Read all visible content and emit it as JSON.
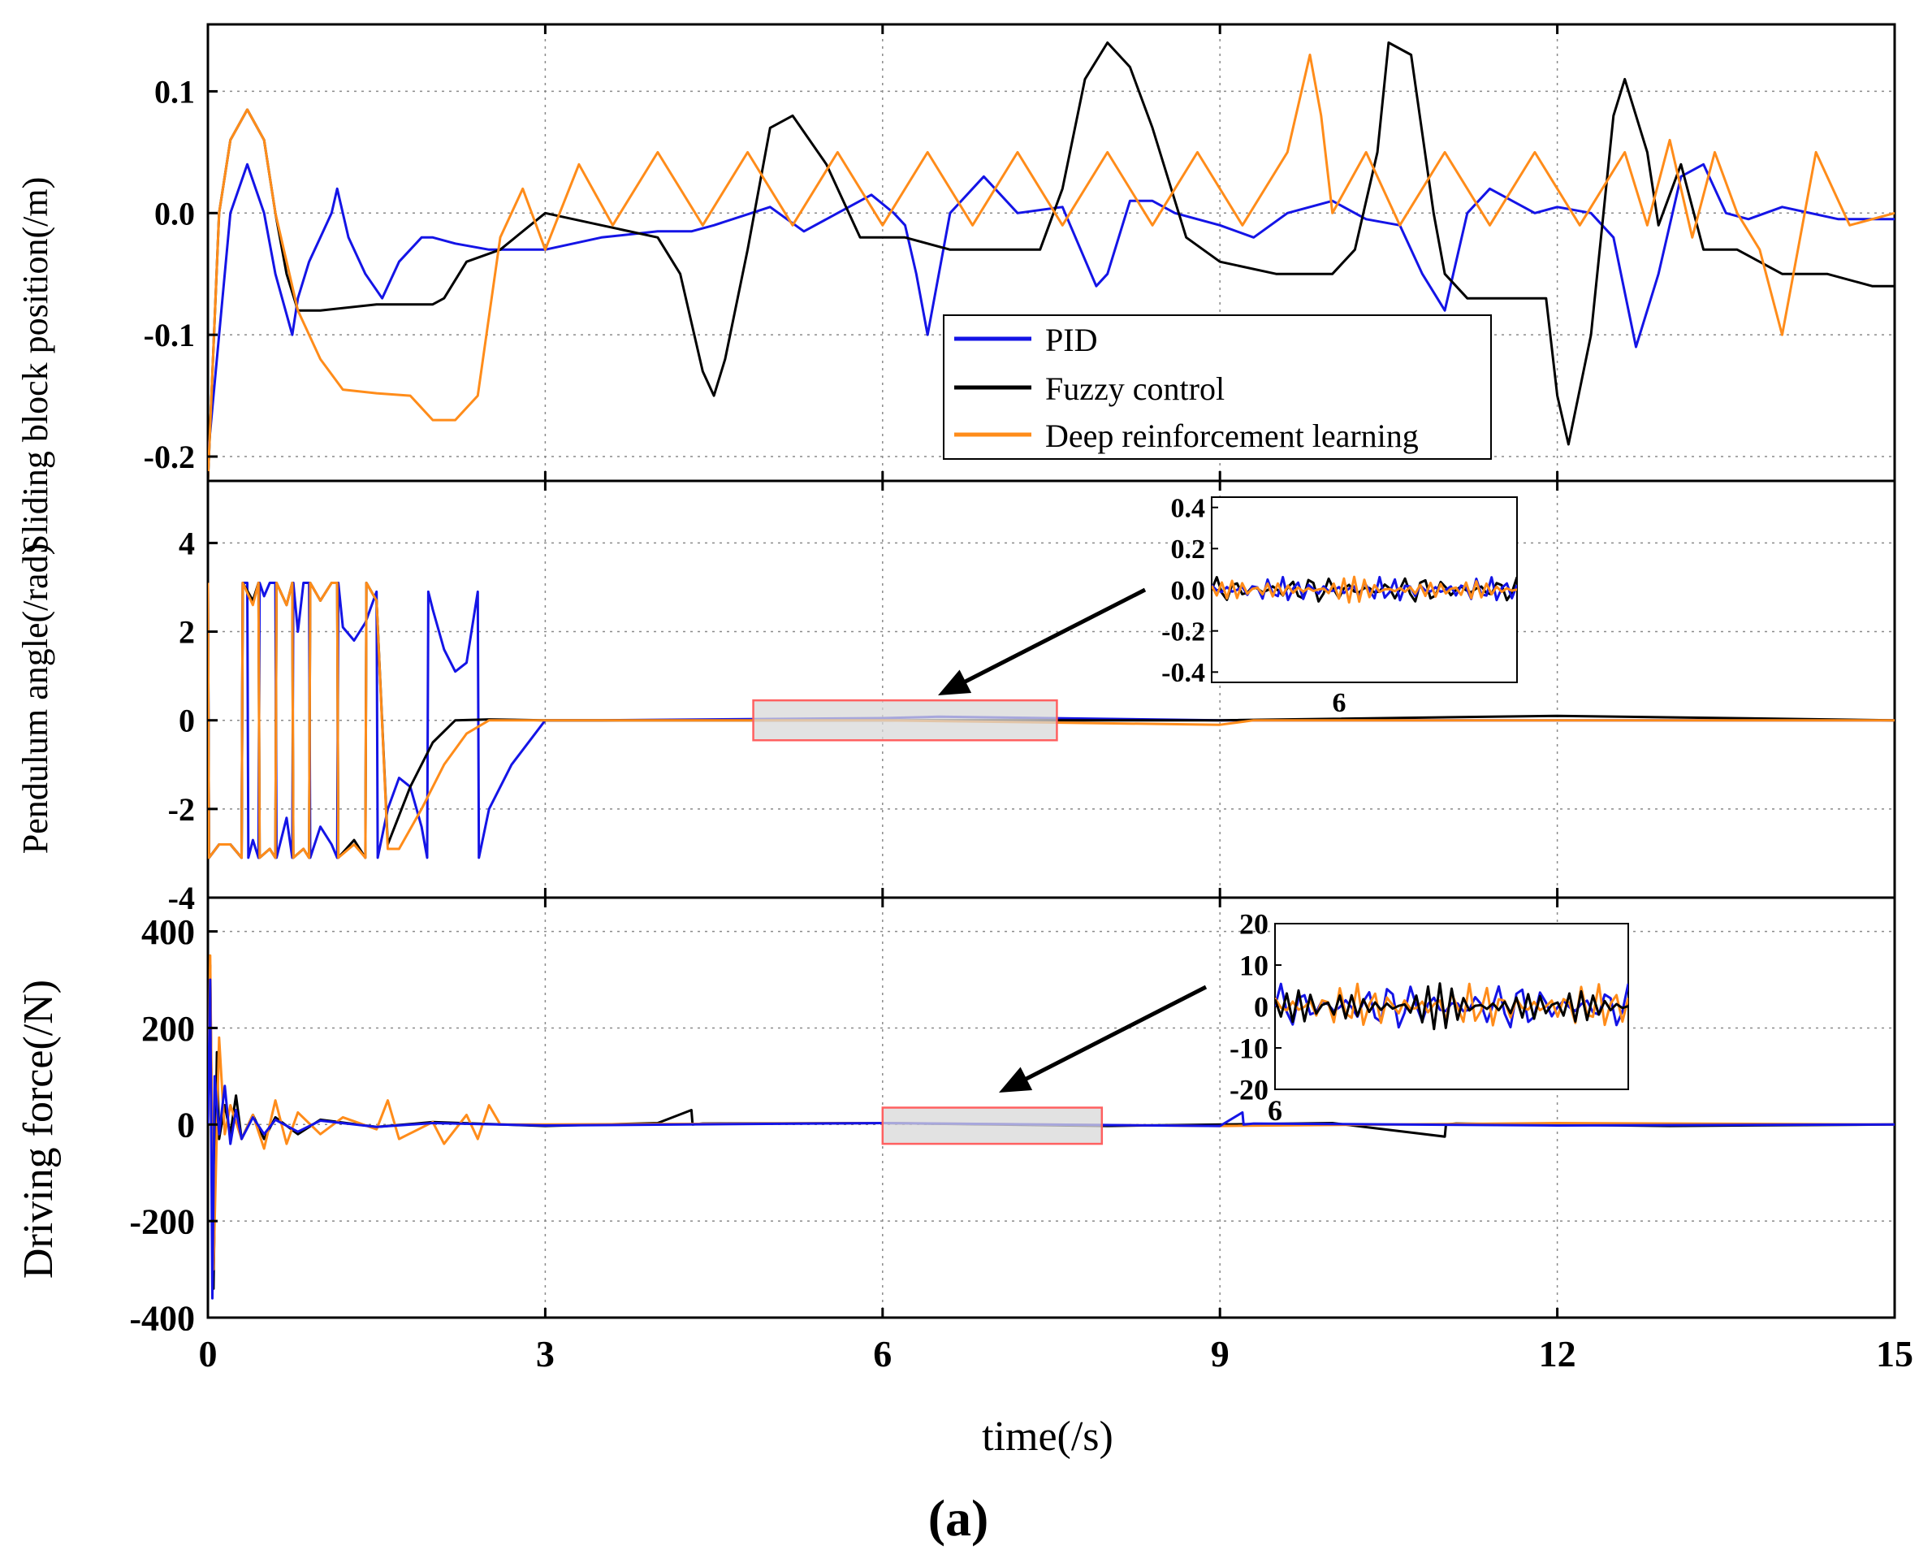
{
  "figure_label": "(a)",
  "colors": {
    "PID": "#1414e6",
    "Fuzzy control": "#000000",
    "Deep reinforcement learning": "#ff8c1a",
    "zoom_box_stroke": "#ff6060",
    "zoom_box_fill": "#d8d8d8"
  },
  "chart_data": [
    {
      "type": "line",
      "id": "position",
      "ylabel": "Sliding block position(/m)",
      "xlabel": "time(/s)",
      "xlim": [
        0,
        15
      ],
      "ylim": [
        -0.22,
        0.155
      ],
      "yticks": [
        0.1,
        0.0,
        -0.1,
        -0.2
      ],
      "ytick_labels": [
        "0.1",
        "0.0",
        "-0.1",
        "-0.2"
      ],
      "xticks": [
        0,
        3,
        6,
        9,
        12,
        15
      ],
      "xtick_labels": [
        "0",
        "3",
        "6",
        "9",
        "12",
        "15"
      ],
      "grid": true,
      "legend": {
        "placement": "bottom-center",
        "entries": [
          "PID",
          "Fuzzy control",
          "Deep reinforcement learning"
        ]
      },
      "series": [
        {
          "name": "PID",
          "x": [
            0,
            0.1,
            0.2,
            0.35,
            0.5,
            0.6,
            0.75,
            0.8,
            0.9,
            1.0,
            1.1,
            1.15,
            1.25,
            1.4,
            1.55,
            1.7,
            1.8,
            1.9,
            2.0,
            2.2,
            2.5,
            3.0,
            3.5,
            4.0,
            4.3,
            4.5,
            5.0,
            5.3,
            5.6,
            5.9,
            6.1,
            6.2,
            6.3,
            6.4,
            6.6,
            6.9,
            7.2,
            7.6,
            7.9,
            8.0,
            8.2,
            8.4,
            8.6,
            8.8,
            9.0,
            9.3,
            9.6,
            10.0,
            10.3,
            10.6,
            10.8,
            11.0,
            11.2,
            11.4,
            11.6,
            11.8,
            12.0,
            12.3,
            12.5,
            12.7,
            12.9,
            13.1,
            13.3,
            13.5,
            13.7,
            14.0,
            14.5,
            15.0
          ],
          "y": [
            -0.2,
            -0.1,
            0.0,
            0.04,
            0.0,
            -0.05,
            -0.1,
            -0.07,
            -0.04,
            -0.02,
            0.0,
            0.02,
            -0.02,
            -0.05,
            -0.07,
            -0.04,
            -0.03,
            -0.02,
            -0.02,
            -0.025,
            -0.03,
            -0.03,
            -0.02,
            -0.015,
            -0.015,
            -0.01,
            0.005,
            -0.015,
            0.0,
            0.015,
            0.0,
            -0.01,
            -0.05,
            -0.1,
            0.0,
            0.03,
            0.0,
            0.005,
            -0.06,
            -0.05,
            0.01,
            0.01,
            0.0,
            -0.005,
            -0.01,
            -0.02,
            0.0,
            0.01,
            -0.005,
            -0.01,
            -0.05,
            -0.08,
            0.0,
            0.02,
            0.01,
            0.0,
            0.005,
            0.0,
            -0.02,
            -0.11,
            -0.05,
            0.03,
            0.04,
            0.0,
            -0.005,
            0.005,
            -0.005,
            -0.005
          ]
        },
        {
          "name": "Fuzzy control",
          "x": [
            0,
            0.1,
            0.2,
            0.35,
            0.5,
            0.6,
            0.7,
            0.8,
            1.0,
            1.5,
            2.0,
            2.1,
            2.3,
            2.6,
            3.0,
            3.5,
            4.0,
            4.2,
            4.4,
            4.5,
            4.6,
            4.8,
            5.0,
            5.2,
            5.5,
            5.8,
            6.2,
            6.6,
            7.0,
            7.4,
            7.6,
            7.8,
            8.0,
            8.2,
            8.4,
            8.7,
            9.0,
            9.5,
            10.0,
            10.2,
            10.4,
            10.5,
            10.7,
            10.9,
            11.0,
            11.2,
            11.5,
            11.9,
            12.0,
            12.1,
            12.3,
            12.5,
            12.6,
            12.8,
            12.9,
            13.1,
            13.3,
            13.6,
            14.0,
            14.4,
            14.8,
            15.0
          ],
          "y": [
            -0.22,
            0.0,
            0.06,
            0.085,
            0.06,
            0.0,
            -0.05,
            -0.08,
            -0.08,
            -0.075,
            -0.075,
            -0.07,
            -0.04,
            -0.03,
            0.0,
            -0.01,
            -0.02,
            -0.05,
            -0.13,
            -0.15,
            -0.12,
            -0.03,
            0.07,
            0.08,
            0.04,
            -0.02,
            -0.02,
            -0.03,
            -0.03,
            -0.03,
            0.02,
            0.11,
            0.14,
            0.12,
            0.07,
            -0.02,
            -0.04,
            -0.05,
            -0.05,
            -0.03,
            0.05,
            0.14,
            0.13,
            0.0,
            -0.05,
            -0.07,
            -0.07,
            -0.07,
            -0.15,
            -0.19,
            -0.1,
            0.08,
            0.11,
            0.05,
            -0.01,
            0.04,
            -0.03,
            -0.03,
            -0.05,
            -0.05,
            -0.06,
            -0.06
          ]
        },
        {
          "name": "Deep reinforcement learning",
          "x": [
            0,
            0.1,
            0.2,
            0.35,
            0.5,
            0.6,
            0.8,
            1.0,
            1.2,
            1.5,
            1.8,
            2.0,
            2.2,
            2.4,
            2.6,
            2.8,
            3.0,
            3.3,
            3.6,
            4.0,
            4.4,
            4.8,
            5.2,
            5.6,
            6.0,
            6.4,
            6.8,
            7.2,
            7.6,
            8.0,
            8.4,
            8.8,
            9.2,
            9.6,
            9.8,
            9.9,
            10.0,
            10.3,
            10.6,
            11.0,
            11.4,
            11.8,
            12.2,
            12.6,
            12.8,
            13.0,
            13.2,
            13.4,
            13.6,
            13.8,
            14.0,
            14.3,
            14.6,
            15.0
          ],
          "y": [
            -0.22,
            0.0,
            0.06,
            0.085,
            0.06,
            0.0,
            -0.08,
            -0.12,
            -0.145,
            -0.148,
            -0.15,
            -0.17,
            -0.17,
            -0.15,
            -0.02,
            0.02,
            -0.03,
            0.04,
            -0.01,
            0.05,
            -0.01,
            0.05,
            -0.01,
            0.05,
            -0.01,
            0.05,
            -0.01,
            0.05,
            -0.01,
            0.05,
            -0.01,
            0.05,
            -0.01,
            0.05,
            0.13,
            0.08,
            0.0,
            0.05,
            -0.01,
            0.05,
            -0.01,
            0.05,
            -0.01,
            0.05,
            -0.01,
            0.06,
            -0.02,
            0.05,
            0.0,
            -0.03,
            -0.1,
            0.05,
            -0.01,
            0.0
          ]
        }
      ],
      "annotations": []
    },
    {
      "type": "line",
      "id": "angle",
      "ylabel": "Pendulum angle(/rad)",
      "xlim": [
        0,
        15
      ],
      "ylim": [
        -4,
        5.4
      ],
      "yticks": [
        4,
        2,
        0,
        -2,
        -4
      ],
      "ytick_labels": [
        "4",
        "2",
        "0",
        "-2",
        "-4"
      ],
      "xticks": [
        0,
        3,
        6,
        9,
        12,
        15
      ],
      "grid": true,
      "series": [
        {
          "name": "PID",
          "x": [
            0,
            0.01,
            0.1,
            0.2,
            0.3,
            0.31,
            0.35,
            0.36,
            0.4,
            0.45,
            0.46,
            0.5,
            0.55,
            0.6,
            0.61,
            0.7,
            0.75,
            0.76,
            0.8,
            0.85,
            0.9,
            0.91,
            1.0,
            1.1,
            1.15,
            1.16,
            1.2,
            1.3,
            1.4,
            1.5,
            1.51,
            1.6,
            1.7,
            1.8,
            1.9,
            1.95,
            1.96,
            2.0,
            2.1,
            2.2,
            2.3,
            2.4,
            2.41,
            2.5,
            2.7,
            3.0,
            3.5,
            6.0,
            6.5,
            9.0,
            12.0,
            15.0
          ],
          "y": [
            3.1,
            -3.1,
            -2.8,
            -2.8,
            -3.1,
            3.1,
            3.1,
            -3.1,
            -2.7,
            -3.1,
            3.1,
            2.8,
            3.1,
            3.1,
            -3.1,
            -2.2,
            -3.1,
            3.1,
            2.0,
            3.1,
            3.1,
            -3.1,
            -2.4,
            -2.8,
            -3.1,
            3.1,
            2.1,
            1.8,
            2.2,
            2.9,
            -3.1,
            -2.0,
            -1.3,
            -1.5,
            -2.4,
            -3.1,
            2.9,
            2.5,
            1.6,
            1.1,
            1.3,
            2.9,
            -3.1,
            -2.0,
            -1.0,
            0.0,
            0.0,
            0.05,
            0.08,
            0.0,
            0.0,
            0.0
          ]
        },
        {
          "name": "Fuzzy control",
          "x": [
            0,
            0.01,
            0.1,
            0.2,
            0.3,
            0.31,
            0.4,
            0.45,
            0.46,
            0.55,
            0.6,
            0.61,
            0.7,
            0.75,
            0.76,
            0.85,
            0.9,
            0.91,
            1.0,
            1.1,
            1.15,
            1.16,
            1.3,
            1.4,
            1.41,
            1.5,
            1.6,
            1.8,
            2.0,
            2.2,
            2.5,
            3.0,
            4.0,
            6.0,
            9.0,
            12.0,
            15.0
          ],
          "y": [
            3.1,
            -3.1,
            -2.8,
            -2.8,
            -3.1,
            3.1,
            2.7,
            3.1,
            -3.1,
            -2.9,
            -3.1,
            3.1,
            2.6,
            3.1,
            -3.1,
            -2.9,
            -3.1,
            3.1,
            2.7,
            3.1,
            3.1,
            -3.1,
            -2.7,
            -3.1,
            3.1,
            2.7,
            -2.8,
            -1.5,
            -0.5,
            0.0,
            0.02,
            0.0,
            0.0,
            0.0,
            0.0,
            0.1,
            0.0
          ]
        },
        {
          "name": "Deep reinforcement learning",
          "x": [
            0,
            0.01,
            0.1,
            0.2,
            0.3,
            0.31,
            0.4,
            0.45,
            0.46,
            0.55,
            0.6,
            0.61,
            0.7,
            0.75,
            0.76,
            0.85,
            0.9,
            0.91,
            1.0,
            1.1,
            1.15,
            1.16,
            1.3,
            1.4,
            1.41,
            1.5,
            1.6,
            1.7,
            1.9,
            2.1,
            2.3,
            2.5,
            3.0,
            4.0,
            6.0,
            9.0,
            9.3,
            12.0,
            15.0
          ],
          "y": [
            3.1,
            -3.1,
            -2.8,
            -2.8,
            -3.1,
            3.1,
            2.6,
            3.1,
            -3.1,
            -2.9,
            -3.1,
            3.1,
            2.6,
            3.1,
            -3.1,
            -2.9,
            -3.1,
            3.1,
            2.7,
            3.1,
            3.1,
            -3.1,
            -2.8,
            -3.1,
            3.1,
            2.7,
            -2.9,
            -2.9,
            -2.0,
            -1.0,
            -0.3,
            0.0,
            0.0,
            0.0,
            0.0,
            -0.1,
            0.0,
            0.0,
            0.0
          ]
        }
      ],
      "annotations": [
        {
          "type": "zoom",
          "x_range": [
            4.85,
            7.55
          ],
          "y_range": [
            -0.45,
            0.45
          ]
        }
      ],
      "inset": {
        "yticks": [
          0.4,
          0.2,
          0.0,
          -0.2,
          -0.4
        ],
        "ytick_labels": [
          "0.4",
          "0.2",
          "0.0",
          "-0.2",
          "-0.4"
        ],
        "xtick_label": "6",
        "ylim": [
          -0.45,
          0.45
        ],
        "xlim": [
          4.85,
          7.55
        ]
      }
    },
    {
      "type": "line",
      "id": "force",
      "ylabel": "Driving force(/N)",
      "xlim": [
        0,
        15
      ],
      "ylim": [
        -400,
        470
      ],
      "yticks": [
        400,
        200,
        0,
        -200,
        -400
      ],
      "ytick_labels": [
        "400",
        "200",
        "0",
        "-200",
        "-400"
      ],
      "xticks": [
        0,
        3,
        6,
        9,
        12,
        15
      ],
      "grid": true,
      "series": [
        {
          "name": "Fuzzy control",
          "x": [
            0,
            0.02,
            0.05,
            0.08,
            0.1,
            0.15,
            0.2,
            0.25,
            0.3,
            0.4,
            0.5,
            0.6,
            0.8,
            1.0,
            1.5,
            2.0,
            3.0,
            4.0,
            4.3,
            4.31,
            4.4,
            6.0,
            8.0,
            10.0,
            11.0,
            11.01,
            11.1,
            13.0,
            15.0
          ],
          "y": [
            0,
            330,
            -340,
            150,
            -30,
            40,
            -20,
            60,
            -30,
            20,
            -30,
            15,
            -20,
            10,
            -5,
            5,
            -3,
            3,
            30,
            0,
            2,
            3,
            -3,
            3,
            -25,
            0,
            2,
            -3,
            0
          ]
        },
        {
          "name": "Deep reinforcement learning",
          "x": [
            0,
            0.02,
            0.05,
            0.1,
            0.15,
            0.2,
            0.3,
            0.4,
            0.5,
            0.6,
            0.7,
            0.8,
            1.0,
            1.2,
            1.5,
            1.6,
            1.7,
            2.0,
            2.1,
            2.3,
            2.4,
            2.5,
            2.6,
            3.0,
            6.0,
            9.0,
            12.0,
            15.0
          ],
          "y": [
            0,
            350,
            -300,
            180,
            -20,
            40,
            -30,
            20,
            -50,
            50,
            -40,
            25,
            -20,
            15,
            -10,
            50,
            -30,
            5,
            -40,
            20,
            -30,
            40,
            0,
            0,
            3,
            -3,
            3,
            0
          ]
        },
        {
          "name": "PID",
          "x": [
            0,
            0.02,
            0.04,
            0.06,
            0.1,
            0.15,
            0.2,
            0.25,
            0.3,
            0.4,
            0.5,
            0.6,
            0.8,
            1.0,
            1.5,
            2.0,
            3.0,
            6.0,
            9.0,
            9.2,
            9.21,
            9.3,
            12.0,
            15.0
          ],
          "y": [
            0,
            300,
            -360,
            100,
            -20,
            80,
            -40,
            30,
            -30,
            15,
            -20,
            10,
            -15,
            8,
            -5,
            3,
            -2,
            3,
            -3,
            25,
            0,
            2,
            -2,
            0
          ]
        }
      ],
      "annotations": [
        {
          "type": "zoom",
          "x_range": [
            6.0,
            7.95
          ],
          "y_range": [
            -40,
            35
          ]
        }
      ],
      "inset": {
        "yticks": [
          20,
          10,
          0,
          -10,
          -20
        ],
        "ytick_labels": [
          "20",
          "10",
          "0",
          "-10",
          "-20"
        ],
        "xtick_label": "6",
        "ylim": [
          -20,
          20
        ],
        "xlim": [
          6.0,
          7.95
        ]
      }
    }
  ]
}
